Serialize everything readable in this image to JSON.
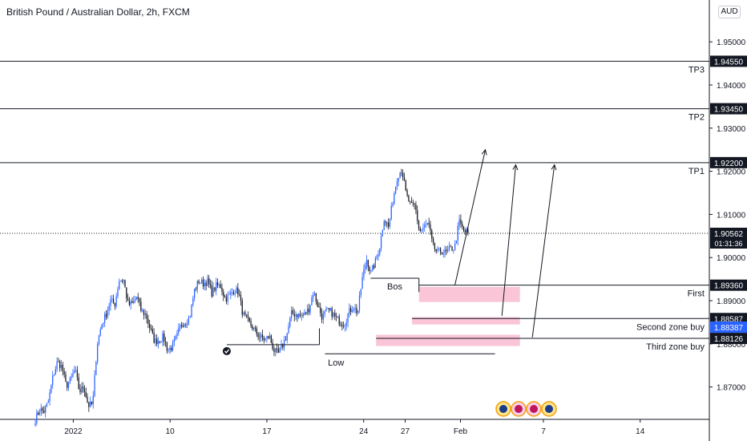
{
  "header": {
    "title": "British Pound / Australian Dollar, 2h, FXCM",
    "currency": "AUD"
  },
  "chart_data": {
    "type": "candlestick",
    "ylim": [
      1.8625,
      1.9597
    ],
    "y_ticks": [
      1.87,
      1.88,
      1.89,
      1.9,
      1.91,
      1.92,
      1.93,
      1.94,
      1.95
    ],
    "y_tick_labels": [
      "1.87000",
      "1.88000",
      "1.89000",
      "1.90000",
      "1.91000",
      "1.92000",
      "1.93000",
      "1.94000",
      "1.95000"
    ],
    "x_ticks": [
      {
        "label": "2022",
        "day": 3
      },
      {
        "label": "10",
        "day": 10
      },
      {
        "label": "17",
        "day": 17
      },
      {
        "label": "24",
        "day": 24
      },
      {
        "label": "27",
        "day": 27
      },
      {
        "label": "Feb",
        "day": 31
      },
      {
        "label": "7",
        "day": 37
      },
      {
        "label": "14",
        "day": 44
      }
    ],
    "x_range_days": [
      -2.3,
      49
    ],
    "price_path": [
      [
        1.8625,
        1.8648,
        1.8643,
        1.8668,
        1.8724,
        1.8758,
        1.8747,
        1.8702
      ],
      [
        1.8716,
        1.8741,
        1.8689,
        1.8701,
        1.8657,
        1.866,
        1.8799,
        1.8845
      ],
      [
        1.8868,
        1.89,
        1.8892,
        1.8948,
        1.8947,
        1.8891,
        1.8892,
        1.891
      ],
      [
        1.8876,
        1.8868,
        1.8835,
        1.8806,
        1.8808,
        1.8816,
        1.8785,
        1.8793
      ],
      [
        1.8815,
        1.8846,
        1.8851,
        1.8862,
        1.8923,
        1.8946,
        1.894,
        1.8945
      ],
      [
        1.8918,
        1.8935,
        1.8934,
        1.8904,
        1.8912,
        1.8925,
        1.8921,
        1.8869
      ],
      [
        1.8855,
        1.8841,
        1.8826,
        1.8815,
        1.881,
        1.8818,
        1.8785,
        1.8776
      ],
      [
        1.8796,
        1.8823,
        1.887,
        1.8869,
        1.8865,
        1.8868,
        1.8882,
        1.8922
      ],
      [
        1.8888,
        1.8861,
        1.8876,
        1.8874,
        1.886,
        1.8852,
        1.8846,
        1.8873
      ],
      [
        1.8887,
        1.8872,
        1.8948,
        1.8998,
        1.8964,
        1.899,
        1.9026,
        1.9092
      ],
      [
        1.907,
        1.9135,
        1.9189,
        1.9205,
        1.9145,
        1.912,
        1.912,
        1.906
      ],
      [
        1.907,
        1.908,
        1.9028,
        1.9012,
        1.9015,
        1.901,
        1.902,
        1.9024
      ],
      [
        1.9084,
        1.9062,
        1.9056
      ]
    ],
    "levels": [
      {
        "label": "TP3",
        "price": 1.9455,
        "price_label": "1.94550"
      },
      {
        "label": "TP2",
        "price": 1.9345,
        "price_label": "1.93450"
      },
      {
        "label": "TP1",
        "price": 1.922,
        "price_label": "1.92200"
      },
      {
        "label": "First",
        "price": 1.8936,
        "price_label": "1.89360"
      },
      {
        "label": "Second zone buy",
        "price": 1.88587,
        "price_label": "1.88587"
      },
      {
        "label": "Third zone buy",
        "price": 1.88126,
        "price_label": "1.88126"
      }
    ],
    "last_price": {
      "price": 1.90562,
      "price_label": "1.90562",
      "countdown": "01:31:36"
    },
    "marker_price": {
      "price": 1.88387,
      "price_label": "1.88387"
    },
    "zones": [
      {
        "day_from": 28.0,
        "day_to": 35.3,
        "price_from": 1.8897,
        "price_to": 1.8932
      },
      {
        "day_from": 27.5,
        "day_to": 35.3,
        "price_from": 1.8845,
        "price_to": 1.8862
      },
      {
        "day_from": 24.9,
        "day_to": 35.3,
        "price_from": 1.8795,
        "price_to": 1.8821
      }
    ],
    "annotations": {
      "bos": {
        "label": "Bos",
        "price": 1.8952,
        "day_from": 24.5,
        "day_to": 28.0
      },
      "low": {
        "label": "Low",
        "price": 1.8777,
        "day_from": 21.2,
        "day_to": 33.5
      },
      "swing_line": {
        "price": 1.8798,
        "day_from": 14.1,
        "day_to": 20.8
      }
    },
    "arrows": [
      {
        "from_day": 30.6,
        "from_price": 1.8936,
        "to_day": 32.8,
        "to_price": 1.925
      },
      {
        "from_day": 34.0,
        "from_price": 1.8865,
        "to_day": 35.0,
        "to_price": 1.9215
      },
      {
        "from_day": 36.2,
        "from_price": 1.8815,
        "to_day": 37.8,
        "to_price": 1.9215
      }
    ]
  }
}
